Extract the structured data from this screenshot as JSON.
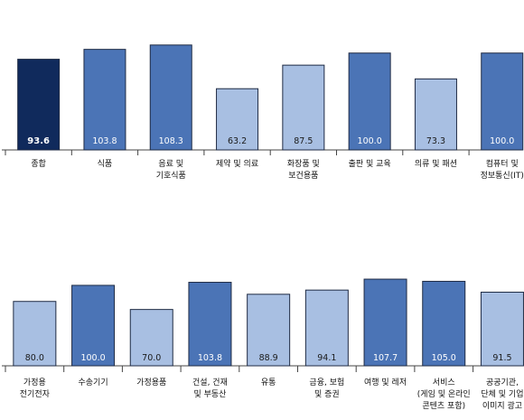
{
  "colors": {
    "light": "#a8bfe2",
    "medium": "#4b74b6",
    "dark": "#102a5c",
    "stroke": "#1f2b44",
    "label_light": "#ffffff",
    "label_dark": "#1a1a1a"
  },
  "chart_data": [
    {
      "type": "bar",
      "title": "",
      "xlabel": "",
      "ylabel": "",
      "ylim": [
        0,
        115
      ],
      "grid": false,
      "categories": [
        [
          "종합"
        ],
        [
          "식품"
        ],
        [
          "음료 및",
          "기호식품"
        ],
        [
          "제약 및 의료"
        ],
        [
          "화장품 및",
          "보건용품"
        ],
        [
          "출판 및 교육"
        ],
        [
          "의류 및 패션"
        ],
        [
          "컴퓨터 및",
          "정보통신(IT)"
        ]
      ],
      "values": [
        93.6,
        103.8,
        108.3,
        63.2,
        87.5,
        100.0,
        73.3,
        100.0
      ],
      "labels": [
        "93.6",
        "103.8",
        "108.3",
        "63.2",
        "87.5",
        "100.0",
        "73.3",
        "100.0"
      ],
      "shades": [
        "dark",
        "medium",
        "medium",
        "light",
        "light",
        "medium",
        "light",
        "medium"
      ]
    },
    {
      "type": "bar",
      "title": "",
      "xlabel": "",
      "ylabel": "",
      "ylim": [
        0,
        115
      ],
      "grid": false,
      "categories": [
        [
          "가정용",
          "전기전자"
        ],
        [
          "수송기기"
        ],
        [
          "가정용품"
        ],
        [
          "건설, 건재",
          "및 부동산"
        ],
        [
          "유통"
        ],
        [
          "금융, 보험",
          "및 증권"
        ],
        [
          "여행 및 레저"
        ],
        [
          "서비스",
          "(게임 및 온라인",
          "콘텐츠 포함)"
        ],
        [
          "공공기관,",
          "단체 및 기업",
          "이미지 광고"
        ]
      ],
      "values": [
        80.0,
        100.0,
        70.0,
        103.8,
        88.9,
        94.1,
        107.7,
        105.0,
        91.5
      ],
      "labels": [
        "80.0",
        "100.0",
        "70.0",
        "103.8",
        "88.9",
        "94.1",
        "107.7",
        "105.0",
        "91.5"
      ],
      "shades": [
        "light",
        "medium",
        "light",
        "medium",
        "light",
        "light",
        "medium",
        "medium",
        "light"
      ]
    }
  ]
}
